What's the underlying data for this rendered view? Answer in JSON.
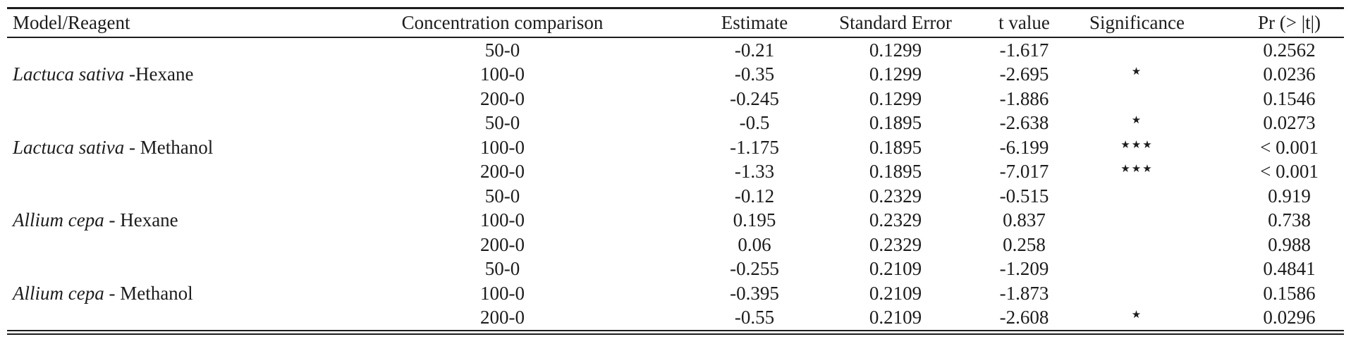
{
  "table": {
    "headers": {
      "model_reagent": "Model/Reagent",
      "concentration": "Concentration comparison",
      "estimate": "Estimate",
      "std_error": "Standard Error",
      "t_value": "t value",
      "significance": "Significance",
      "pr": "Pr (> |t|)"
    },
    "groups": [
      {
        "species": "Lactuca sativa",
        "reagent": " -Hexane",
        "rows": [
          {
            "comparison": "50-0",
            "estimate": "-0.21",
            "std_error": "0.1299",
            "t_value": "-1.617",
            "significance": "",
            "pr": "0.2562"
          },
          {
            "comparison": "100-0",
            "estimate": "-0.35",
            "std_error": "0.1299",
            "t_value": "-2.695",
            "significance": "★",
            "pr": "0.0236"
          },
          {
            "comparison": "200-0",
            "estimate": "-0.245",
            "std_error": "0.1299",
            "t_value": "-1.886",
            "significance": "",
            "pr": "0.1546"
          }
        ]
      },
      {
        "species": "Lactuca sativa",
        "reagent": " - Methanol",
        "rows": [
          {
            "comparison": "50-0",
            "estimate": "-0.5",
            "std_error": "0.1895",
            "t_value": "-2.638",
            "significance": "★",
            "pr": "0.0273"
          },
          {
            "comparison": "100-0",
            "estimate": "-1.175",
            "std_error": "0.1895",
            "t_value": "-6.199",
            "significance": "★★★",
            "pr": "< 0.001"
          },
          {
            "comparison": "200-0",
            "estimate": "-1.33",
            "std_error": "0.1895",
            "t_value": "-7.017",
            "significance": "★★★",
            "pr": "< 0.001"
          }
        ]
      },
      {
        "species": "Allium cepa",
        "reagent": " - Hexane",
        "rows": [
          {
            "comparison": "50-0",
            "estimate": "-0.12",
            "std_error": "0.2329",
            "t_value": "-0.515",
            "significance": "",
            "pr": "0.919"
          },
          {
            "comparison": "100-0",
            "estimate": "0.195",
            "std_error": "0.2329",
            "t_value": "0.837",
            "significance": "",
            "pr": "0.738"
          },
          {
            "comparison": "200-0",
            "estimate": "0.06",
            "std_error": "0.2329",
            "t_value": "0.258",
            "significance": "",
            "pr": "0.988"
          }
        ]
      },
      {
        "species": "Allium cepa",
        "reagent": " - Methanol",
        "rows": [
          {
            "comparison": "50-0",
            "estimate": "-0.255",
            "std_error": "0.2109",
            "t_value": "-1.209",
            "significance": "",
            "pr": "0.4841"
          },
          {
            "comparison": "100-0",
            "estimate": "-0.395",
            "std_error": "0.2109",
            "t_value": "-1.873",
            "significance": "",
            "pr": "0.1586"
          },
          {
            "comparison": "200-0",
            "estimate": "-0.55",
            "std_error": "0.2109",
            "t_value": "-2.608",
            "significance": "★",
            "pr": "0.0296"
          }
        ]
      }
    ]
  }
}
